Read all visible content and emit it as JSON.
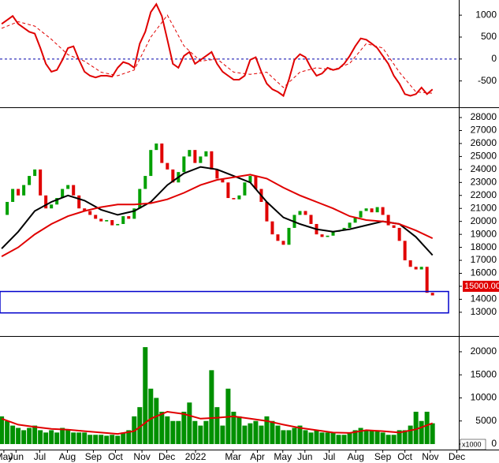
{
  "chart_data": [
    {
      "type": "line",
      "ylim": [
        -1100,
        1345
      ],
      "yticks": [
        -500,
        0,
        500,
        1000
      ],
      "xlim": [
        -0.3,
        82.9
      ],
      "reference_line": 0,
      "reference_color": "#0000aa",
      "series": [
        {
          "color": "#e00000",
          "x": [
            0,
            1,
            2,
            3,
            4,
            5,
            6,
            7,
            8,
            9,
            10,
            11,
            12,
            13,
            14,
            15,
            16,
            17,
            18,
            19,
            20,
            21,
            22,
            23,
            24,
            25,
            26,
            27,
            28,
            29,
            30,
            31,
            32,
            33,
            34,
            35,
            36,
            37,
            38,
            39,
            40,
            41,
            42,
            43,
            44,
            45,
            46,
            47,
            48,
            49,
            50,
            51,
            52,
            53,
            54,
            55,
            56,
            57,
            58,
            59,
            60,
            61,
            62,
            63,
            64,
            65,
            66,
            67,
            68,
            69,
            70,
            71,
            72,
            73,
            74,
            75,
            76,
            77,
            78
          ],
          "values": [
            800,
            890,
            980,
            800,
            710,
            620,
            580,
            250,
            -110,
            -290,
            -250,
            -20,
            250,
            290,
            -20,
            -290,
            -380,
            -420,
            -380,
            -380,
            -400,
            -200,
            -70,
            -110,
            -200,
            350,
            620,
            1070,
            1250,
            980,
            440,
            -110,
            -200,
            70,
            160,
            -110,
            -20,
            70,
            160,
            -110,
            -290,
            -380,
            -470,
            -470,
            -380,
            -20,
            40,
            -290,
            -560,
            -690,
            -750,
            -840,
            -470,
            -20,
            110,
            40,
            -200,
            -380,
            -330,
            -200,
            -250,
            -220,
            -110,
            70,
            290,
            470,
            440,
            350,
            250,
            70,
            -110,
            -380,
            -560,
            -800,
            -840,
            -800,
            -650,
            -800,
            -690
          ]
        },
        {
          "color": "#e00000",
          "dashed": true,
          "x": [
            0,
            3,
            6,
            9,
            12,
            15,
            18,
            21,
            24,
            27,
            30,
            33,
            36,
            39,
            42,
            45,
            48,
            51,
            54,
            57,
            60,
            63,
            66,
            69,
            72,
            75,
            78
          ],
          "values": [
            700,
            850,
            750,
            450,
            100,
            -50,
            -300,
            -380,
            -250,
            500,
            1000,
            300,
            -50,
            0,
            -300,
            -350,
            -300,
            -650,
            -300,
            -200,
            -250,
            -100,
            350,
            250,
            -300,
            -750,
            -780
          ]
        }
      ]
    },
    {
      "type": "candlestick",
      "ylim": [
        11170,
        28730
      ],
      "yticks": [
        13000,
        14000,
        15000,
        16000,
        17000,
        18000,
        19000,
        20000,
        21000,
        22000,
        23000,
        24000,
        25000,
        26000,
        27000,
        28000
      ],
      "xlim": [
        -0.3,
        82.9
      ],
      "up_color": "#00a000",
      "down_color": "#e00000",
      "x": [
        0,
        1,
        2,
        3,
        4,
        5,
        6,
        7,
        8,
        9,
        10,
        11,
        12,
        13,
        14,
        15,
        16,
        17,
        18,
        19,
        20,
        21,
        22,
        23,
        24,
        25,
        26,
        27,
        28,
        29,
        30,
        31,
        32,
        33,
        34,
        35,
        36,
        37,
        38,
        39,
        40,
        41,
        42,
        43,
        44,
        45,
        46,
        47,
        48,
        49,
        50,
        51,
        52,
        53,
        54,
        55,
        56,
        57,
        58,
        59,
        60,
        61,
        62,
        63,
        64,
        65,
        66,
        67,
        68,
        69,
        70,
        71,
        72,
        73,
        74,
        75,
        76,
        77,
        78
      ],
      "values": [
        20500,
        21500,
        22500,
        22000,
        22800,
        23500,
        24000,
        22000,
        21000,
        21300,
        21800,
        22500,
        22800,
        22000,
        21000,
        20800,
        20500,
        20200,
        20000,
        20100,
        19700,
        19800,
        20400,
        20200,
        21000,
        22500,
        23500,
        25500,
        26000,
        24500,
        24000,
        23000,
        23800,
        25000,
        25500,
        24500,
        25000,
        25400,
        24000,
        23300,
        23000,
        21800,
        21700,
        22000,
        23000,
        23500,
        22500,
        21500,
        20000,
        19000,
        18500,
        18200,
        19500,
        20500,
        20800,
        20500,
        19800,
        19000,
        18800,
        18900,
        19200,
        19300,
        19500,
        19900,
        20300,
        20800,
        21000,
        20700,
        21100,
        20500,
        19700,
        19500,
        18500,
        17000,
        16500,
        16300,
        16500,
        14500,
        14300
      ],
      "series": [
        {
          "color": "#000000",
          "x": [
            0,
            3,
            6,
            9,
            12,
            15,
            18,
            21,
            24,
            27,
            30,
            33,
            36,
            39,
            42,
            45,
            48,
            51,
            54,
            57,
            60,
            63,
            66,
            69,
            72,
            75,
            78
          ],
          "values": [
            17900,
            19200,
            20800,
            21500,
            22000,
            21600,
            20900,
            20500,
            20800,
            21500,
            22800,
            23700,
            24200,
            24000,
            23500,
            23000,
            21500,
            20300,
            19800,
            19400,
            19200,
            19400,
            19700,
            20000,
            19800,
            18800,
            17400
          ]
        },
        {
          "color": "#e00000",
          "x": [
            0,
            3,
            6,
            9,
            12,
            15,
            18,
            21,
            24,
            27,
            30,
            33,
            36,
            39,
            42,
            45,
            48,
            51,
            54,
            57,
            60,
            63,
            66,
            69,
            72,
            75,
            78
          ],
          "values": [
            17300,
            18000,
            19000,
            19800,
            20400,
            20800,
            21100,
            21300,
            21300,
            21400,
            21700,
            22200,
            22800,
            23200,
            23400,
            23600,
            23300,
            22600,
            22000,
            21500,
            21000,
            20400,
            20100,
            20000,
            19800,
            19300,
            18700
          ]
        }
      ],
      "zone": {
        "xlim": [
          -0.3,
          80.9
        ],
        "ylim": [
          12950,
          14600
        ],
        "color": "#0000cc"
      },
      "last_price": {
        "value": 15000,
        "label": "15000.00"
      }
    },
    {
      "type": "bar",
      "ylim": [
        -1200,
        23240
      ],
      "yticks": [
        0,
        5000,
        10000,
        15000,
        20000
      ],
      "y_unit_label": "x1000",
      "xlim": [
        -0.3,
        82.9
      ],
      "xticks": [
        {
          "value": 0.4,
          "label": "May"
        },
        {
          "value": 2.6,
          "label": "Jun"
        },
        {
          "value": 6.9,
          "label": "Jul"
        },
        {
          "value": 11.9,
          "label": "Aug"
        },
        {
          "value": 16.6,
          "label": "Sep"
        },
        {
          "value": 20.6,
          "label": "Oct"
        },
        {
          "value": 25.4,
          "label": "Nov"
        },
        {
          "value": 29.9,
          "label": "Dec"
        },
        {
          "value": 35.1,
          "label": "2022"
        },
        {
          "value": 41.9,
          "label": "Mar"
        },
        {
          "value": 46.3,
          "label": "Apr"
        },
        {
          "value": 50.9,
          "label": "May"
        },
        {
          "value": 54.9,
          "label": "Jun"
        },
        {
          "value": 59.3,
          "label": "Jul"
        },
        {
          "value": 64.1,
          "label": "Aug"
        },
        {
          "value": 69,
          "label": "Sep"
        },
        {
          "value": 73,
          "label": "Oct"
        },
        {
          "value": 77.6,
          "label": "Nov"
        },
        {
          "value": 82.4,
          "label": "Dec"
        }
      ],
      "color": "#009000",
      "x": [
        0,
        1,
        2,
        3,
        4,
        5,
        6,
        7,
        8,
        9,
        10,
        11,
        12,
        13,
        14,
        15,
        16,
        17,
        18,
        19,
        20,
        21,
        22,
        23,
        24,
        25,
        26,
        27,
        28,
        29,
        30,
        31,
        32,
        33,
        34,
        35,
        36,
        37,
        38,
        39,
        40,
        41,
        42,
        43,
        44,
        45,
        46,
        47,
        48,
        49,
        50,
        51,
        52,
        53,
        54,
        55,
        56,
        57,
        58,
        59,
        60,
        61,
        62,
        63,
        64,
        65,
        66,
        67,
        68,
        69,
        70,
        71,
        72,
        73,
        74,
        75,
        76,
        77,
        78
      ],
      "values": [
        6000,
        5000,
        4000,
        3500,
        3000,
        3500,
        4000,
        3000,
        2500,
        3000,
        2500,
        3500,
        3000,
        2500,
        2500,
        2500,
        2000,
        2000,
        2000,
        1800,
        2000,
        1800,
        2500,
        3000,
        6000,
        8000,
        21000,
        12000,
        10000,
        7000,
        6000,
        5000,
        5000,
        7000,
        9000,
        5000,
        4000,
        5000,
        16000,
        8000,
        4000,
        12000,
        7000,
        6000,
        4000,
        4500,
        5000,
        4000,
        6000,
        5000,
        4000,
        3000,
        3000,
        3500,
        4000,
        3000,
        2500,
        3000,
        2500,
        2500,
        2500,
        2000,
        2000,
        2500,
        3000,
        3500,
        3000,
        3000,
        3000,
        2500,
        2000,
        2000,
        3000,
        3000,
        4000,
        7000,
        5000,
        7000,
        4500
      ],
      "series": [
        {
          "color": "#e00000",
          "x": [
            0,
            3,
            6,
            9,
            12,
            15,
            18,
            21,
            24,
            27,
            30,
            33,
            36,
            39,
            42,
            45,
            48,
            51,
            54,
            57,
            60,
            63,
            66,
            69,
            72,
            75,
            78
          ],
          "values": [
            5500,
            4200,
            3700,
            3300,
            3100,
            2800,
            2500,
            2200,
            2800,
            5500,
            7000,
            6500,
            5500,
            5700,
            6000,
            5500,
            5000,
            4200,
            3500,
            3000,
            2500,
            2400,
            3000,
            2800,
            2500,
            3200,
            4500
          ]
        }
      ]
    }
  ]
}
